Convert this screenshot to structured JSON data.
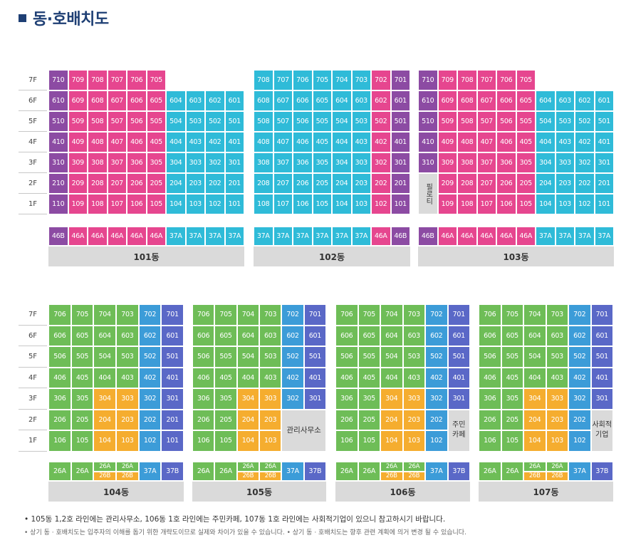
{
  "title": "동·호배치도",
  "colors": {
    "purple": "#8c4ba3",
    "pink": "#e6468f",
    "cyan": "#2fbbd8",
    "green": "#6ebd57",
    "blue": "#3c9cd8",
    "indigo": "#5a68c7",
    "orange": "#f5ad2f",
    "gray": "#dadada"
  },
  "floors": [
    "7F",
    "6F",
    "5F",
    "4F",
    "3F",
    "2F",
    "1F"
  ],
  "top": [
    {
      "name": "101동",
      "special": null,
      "units": [
        [
          "710",
          "709",
          "708",
          "707",
          "706",
          "705",
          "",
          "",
          "",
          ""
        ],
        [
          "610",
          "609",
          "608",
          "607",
          "606",
          "605",
          "604",
          "603",
          "602",
          "601"
        ],
        [
          "510",
          "509",
          "508",
          "507",
          "506",
          "505",
          "504",
          "503",
          "502",
          "501"
        ],
        [
          "410",
          "409",
          "408",
          "407",
          "406",
          "405",
          "404",
          "403",
          "402",
          "401"
        ],
        [
          "310",
          "309",
          "308",
          "307",
          "306",
          "305",
          "304",
          "303",
          "302",
          "301"
        ],
        [
          "210",
          "209",
          "208",
          "207",
          "206",
          "205",
          "204",
          "203",
          "202",
          "201"
        ],
        [
          "110",
          "109",
          "108",
          "107",
          "106",
          "105",
          "104",
          "103",
          "102",
          "101"
        ]
      ],
      "types": [
        "46B",
        "46A",
        "46A",
        "46A",
        "46A",
        "46A",
        "37A",
        "37A",
        "37A",
        "37A"
      ]
    },
    {
      "name": "102동",
      "special": null,
      "units": [
        [
          "708",
          "707",
          "706",
          "705",
          "704",
          "703",
          "702",
          "701"
        ],
        [
          "608",
          "607",
          "606",
          "605",
          "604",
          "603",
          "602",
          "601"
        ],
        [
          "508",
          "507",
          "506",
          "505",
          "504",
          "503",
          "502",
          "501"
        ],
        [
          "408",
          "407",
          "406",
          "405",
          "404",
          "403",
          "402",
          "401"
        ],
        [
          "308",
          "307",
          "306",
          "305",
          "304",
          "303",
          "302",
          "301"
        ],
        [
          "208",
          "207",
          "206",
          "205",
          "204",
          "203",
          "202",
          "201"
        ],
        [
          "108",
          "107",
          "106",
          "105",
          "104",
          "103",
          "102",
          "101"
        ]
      ],
      "types": [
        "37A",
        "37A",
        "37A",
        "37A",
        "37A",
        "37A",
        "46A",
        "46B"
      ]
    },
    {
      "name": "103동",
      "special": "필로티",
      "units": [
        [
          "710",
          "709",
          "708",
          "707",
          "706",
          "705",
          "",
          "",
          "",
          ""
        ],
        [
          "610",
          "609",
          "608",
          "607",
          "606",
          "605",
          "604",
          "603",
          "602",
          "601"
        ],
        [
          "510",
          "509",
          "508",
          "507",
          "506",
          "505",
          "504",
          "503",
          "502",
          "501"
        ],
        [
          "410",
          "409",
          "408",
          "407",
          "406",
          "405",
          "404",
          "403",
          "402",
          "401"
        ],
        [
          "310",
          "309",
          "308",
          "307",
          "306",
          "305",
          "304",
          "303",
          "302",
          "301"
        ],
        [
          "",
          "209",
          "208",
          "207",
          "206",
          "205",
          "204",
          "203",
          "202",
          "201"
        ],
        [
          "",
          "109",
          "108",
          "107",
          "106",
          "105",
          "104",
          "103",
          "102",
          "101"
        ]
      ],
      "types": [
        "46B",
        "46A",
        "46A",
        "46A",
        "46A",
        "46A",
        "37A",
        "37A",
        "37A",
        "37A"
      ]
    }
  ],
  "bottom": [
    {
      "name": "104동",
      "special": null,
      "units": [
        [
          "706",
          "705",
          "704",
          "703",
          "702",
          "701"
        ],
        [
          "606",
          "605",
          "604",
          "603",
          "602",
          "601"
        ],
        [
          "506",
          "505",
          "504",
          "503",
          "502",
          "501"
        ],
        [
          "406",
          "405",
          "404",
          "403",
          "402",
          "401"
        ],
        [
          "306",
          "305",
          "304",
          "303",
          "302",
          "301"
        ],
        [
          "206",
          "205",
          "204",
          "203",
          "202",
          "201"
        ],
        [
          "106",
          "105",
          "104",
          "103",
          "102",
          "101"
        ]
      ],
      "types": [
        "26A",
        "26A",
        "26A/26B",
        "26A/26B",
        "37A",
        "37B"
      ]
    },
    {
      "name": "105동",
      "special": "관리사무소",
      "units": [
        [
          "706",
          "705",
          "704",
          "703",
          "702",
          "701"
        ],
        [
          "606",
          "605",
          "604",
          "603",
          "602",
          "601"
        ],
        [
          "506",
          "505",
          "504",
          "503",
          "502",
          "501"
        ],
        [
          "406",
          "405",
          "404",
          "403",
          "402",
          "401"
        ],
        [
          "306",
          "305",
          "304",
          "303",
          "302",
          "301"
        ],
        [
          "206",
          "205",
          "204",
          "203",
          "",
          ""
        ],
        [
          "106",
          "105",
          "104",
          "103",
          "",
          ""
        ]
      ],
      "types": [
        "26A",
        "26A",
        "26A/26B",
        "26A/26B",
        "37A",
        "37B"
      ]
    },
    {
      "name": "106동",
      "special": "주민\n카페",
      "units": [
        [
          "706",
          "705",
          "704",
          "703",
          "702",
          "701"
        ],
        [
          "606",
          "605",
          "604",
          "603",
          "602",
          "601"
        ],
        [
          "506",
          "505",
          "504",
          "503",
          "502",
          "501"
        ],
        [
          "406",
          "405",
          "404",
          "403",
          "402",
          "401"
        ],
        [
          "306",
          "305",
          "304",
          "303",
          "302",
          "301"
        ],
        [
          "206",
          "205",
          "204",
          "203",
          "202",
          ""
        ],
        [
          "106",
          "105",
          "104",
          "103",
          "102",
          ""
        ]
      ],
      "types": [
        "26A",
        "26A",
        "26A/26B",
        "26A/26B",
        "37A",
        "37B"
      ]
    },
    {
      "name": "107동",
      "special": "사회적\n기업",
      "units": [
        [
          "706",
          "705",
          "704",
          "703",
          "702",
          "701"
        ],
        [
          "606",
          "605",
          "604",
          "603",
          "602",
          "601"
        ],
        [
          "506",
          "505",
          "504",
          "503",
          "502",
          "501"
        ],
        [
          "406",
          "405",
          "404",
          "403",
          "402",
          "401"
        ],
        [
          "306",
          "305",
          "304",
          "303",
          "302",
          "301"
        ],
        [
          "206",
          "205",
          "204",
          "203",
          "202",
          ""
        ],
        [
          "106",
          "105",
          "104",
          "103",
          "102",
          ""
        ]
      ],
      "types": [
        "26A",
        "26A",
        "26A/26B",
        "26A/26B",
        "37A",
        "37B"
      ]
    }
  ],
  "notes": [
    "105동 1,2호 라인에는 관리사무소, 106동 1호 라인에는 주민카페, 107동 1호 라인에는 사회적기업이 있으니 참고하시기 바랍니다.",
    "상기 동 · 호배치도는 입주자의 이해를 돕기 위한 개략도이므로 실제와 차이가 있을 수 있습니다.   • 상기 동 · 호배치도는 향후 관련 계획에 의거 변경 될 수 있습니다."
  ]
}
